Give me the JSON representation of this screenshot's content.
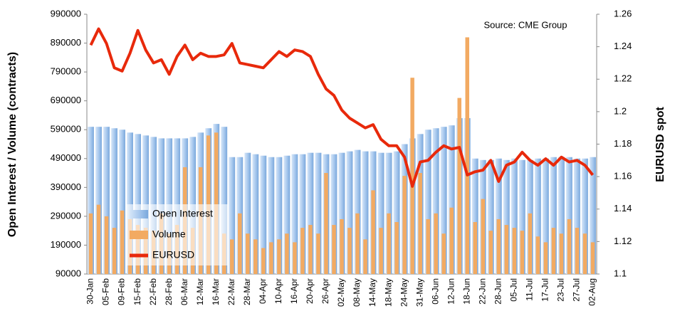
{
  "chart_data": {
    "type": "bar",
    "annotation": "Source: CME Group",
    "ylabel": "Open Interest / Volume (contracts)",
    "y2label": "EURUSD spot",
    "categories": [
      "30-Jan",
      null,
      "05-Feb",
      null,
      "09-Feb",
      null,
      "15-Feb",
      null,
      "22-Feb",
      null,
      "28-Feb",
      null,
      "06-Mar",
      null,
      "12-Mar",
      null,
      "16-Mar",
      null,
      "22-Mar",
      null,
      "28-Mar",
      null,
      "04-Apr",
      null,
      "10-Apr",
      null,
      "16-Apr",
      null,
      "20-Apr",
      null,
      "26-Apr",
      null,
      "02-May",
      null,
      "08-May",
      null,
      "14-May",
      null,
      "18-May",
      null,
      "24-May",
      null,
      "31-May",
      null,
      "06-Jun",
      null,
      "12-Jun",
      null,
      "18-Jun",
      null,
      "22-Jun",
      null,
      "28-Jun",
      null,
      "05-Jul",
      null,
      "11-Jul",
      null,
      "17-Jul",
      null,
      "23-Jul",
      null,
      "27-Jul",
      null,
      "02-Aug"
    ],
    "series": [
      {
        "name": "Open Interest",
        "color": "#a9c9ee",
        "values": [
          600000,
          600000,
          600000,
          595000,
          590000,
          580000,
          575000,
          570000,
          565000,
          560000,
          560000,
          560000,
          560000,
          565000,
          580000,
          595000,
          610000,
          600000,
          495000,
          495000,
          510000,
          505000,
          500000,
          495000,
          495000,
          500000,
          505000,
          505000,
          510000,
          510000,
          505000,
          505000,
          510000,
          515000,
          520000,
          515000,
          515000,
          510000,
          510000,
          515000,
          540000,
          560000,
          575000,
          590000,
          595000,
          600000,
          605000,
          630000,
          630000,
          490000,
          485000,
          485000,
          490000,
          485000,
          490000,
          485000,
          485000,
          490000,
          490000,
          495000,
          495000,
          495000,
          490000,
          490000,
          495000
        ]
      },
      {
        "name": "Volume",
        "color": "#f2aa62",
        "values": [
          300000,
          330000,
          290000,
          250000,
          310000,
          280000,
          260000,
          250000,
          240000,
          300000,
          230000,
          260000,
          460000,
          250000,
          460000,
          570000,
          580000,
          230000,
          210000,
          300000,
          230000,
          210000,
          180000,
          200000,
          210000,
          230000,
          200000,
          250000,
          260000,
          230000,
          440000,
          260000,
          280000,
          250000,
          300000,
          210000,
          380000,
          250000,
          300000,
          270000,
          430000,
          770000,
          440000,
          280000,
          300000,
          230000,
          320000,
          700000,
          910000,
          270000,
          350000,
          240000,
          280000,
          260000,
          250000,
          240000,
          300000,
          220000,
          200000,
          250000,
          230000,
          280000,
          250000,
          230000,
          200000
        ]
      },
      {
        "name": "EURUSD",
        "color": "#e8290b",
        "type": "line",
        "axis": "y2",
        "values": [
          1.241,
          1.251,
          1.242,
          1.227,
          1.225,
          1.236,
          1.25,
          1.238,
          1.23,
          1.232,
          1.223,
          1.234,
          1.241,
          1.232,
          1.236,
          1.234,
          1.234,
          1.235,
          1.242,
          1.23,
          1.229,
          1.228,
          1.227,
          1.232,
          1.237,
          1.234,
          1.238,
          1.237,
          1.234,
          1.223,
          1.214,
          1.21,
          1.201,
          1.196,
          1.193,
          1.19,
          1.192,
          1.183,
          1.179,
          1.179,
          1.172,
          1.154,
          1.169,
          1.17,
          1.175,
          1.179,
          1.177,
          1.178,
          1.161,
          1.163,
          1.164,
          1.17,
          1.157,
          1.167,
          1.169,
          1.175,
          1.17,
          1.167,
          1.171,
          1.167,
          1.172,
          1.169,
          1.17,
          1.167,
          1.161
        ]
      }
    ],
    "ylim": [
      90000,
      990000
    ],
    "yticks": [
      90000,
      190000,
      290000,
      390000,
      490000,
      590000,
      690000,
      790000,
      890000,
      990000
    ],
    "y2lim": [
      1.1,
      1.26
    ],
    "y2ticks": [
      1.1,
      1.12,
      1.14,
      1.16,
      1.18,
      1.2,
      1.22,
      1.24,
      1.26
    ],
    "grid": false
  }
}
